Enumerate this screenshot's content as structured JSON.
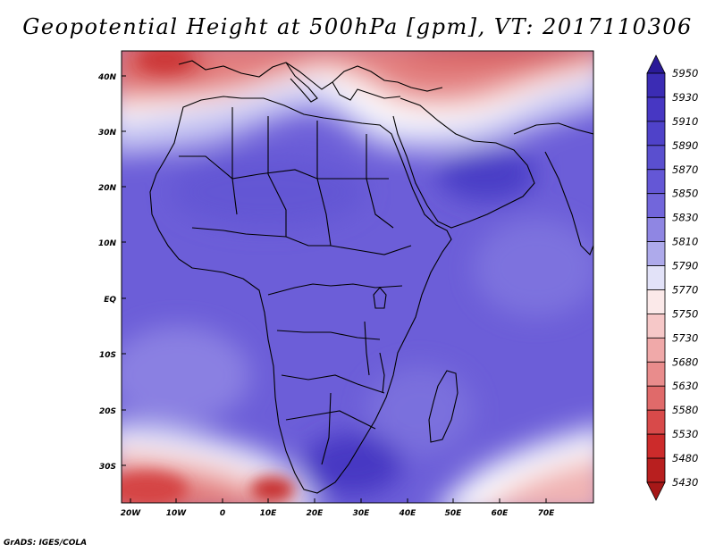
{
  "title": "Geopotential Height at 500hPa [gpm], VT: 2017110306",
  "credit": "GrADS: IGES/COLA",
  "colorbar": {
    "labels": [
      "5950",
      "5930",
      "5910",
      "5890",
      "5870",
      "5850",
      "5830",
      "5810",
      "5790",
      "5770",
      "5750",
      "5730",
      "5680",
      "5630",
      "5580",
      "5530",
      "5480",
      "5430"
    ],
    "colors_top_to_bottom": [
      "#2a1a98",
      "#3b2cb4",
      "#4737c3",
      "#4f42c9",
      "#5a4fcf",
      "#6457d6",
      "#7266db",
      "#8f86e3",
      "#aeaaeb",
      "#e2e2f8",
      "#fbe9e9",
      "#f6c8c8",
      "#f0a9a9",
      "#e98c8c",
      "#e06a6a",
      "#d84a4a",
      "#cc2b2b",
      "#b81f1f",
      "#a61818"
    ]
  },
  "axes": {
    "lon_labels": [
      "20W",
      "10W",
      "0",
      "10E",
      "20E",
      "30E",
      "40E",
      "50E",
      "60E",
      "70E"
    ],
    "lat_labels": [
      "40N",
      "30N",
      "20N",
      "10N",
      "EQ",
      "10S",
      "20S",
      "30S"
    ]
  }
}
